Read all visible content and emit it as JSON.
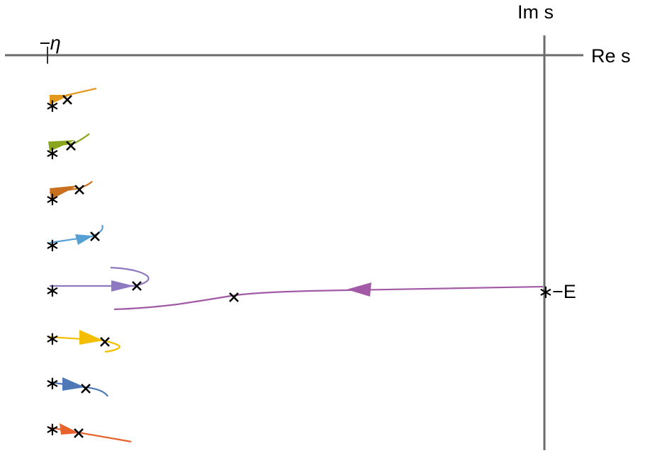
{
  "axes": {
    "real_label": "Re s",
    "imag_label": "Im s",
    "neg_eta_label": "−η",
    "neg_E_label": "−E"
  },
  "colors": {
    "axis": "#6b6b6b",
    "orange": "#e39a1c",
    "green": "#8aa61e",
    "rust": "#c8701e",
    "blue": "#56a0d3",
    "violet": "#8e78c2",
    "magenta": "#a35aa6",
    "yellow": "#f3bd00",
    "steel": "#4f79b6",
    "red": "#e8622c"
  },
  "markers": {
    "star": "∗",
    "cross_meaning": "x-mark-icon"
  }
}
